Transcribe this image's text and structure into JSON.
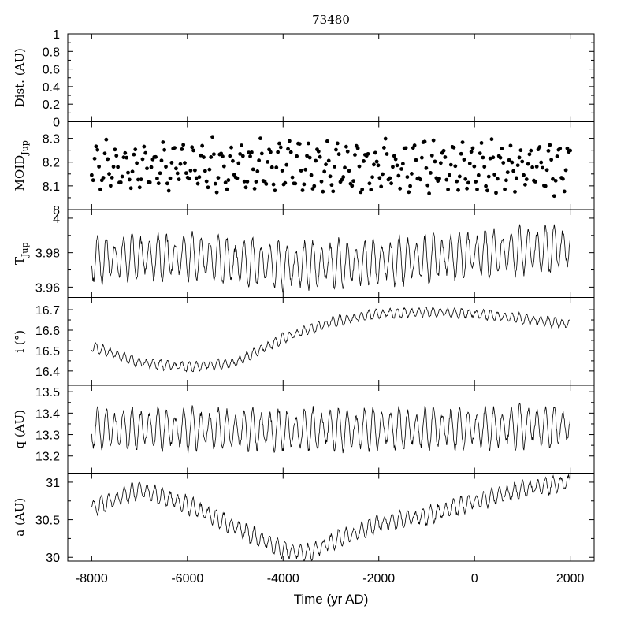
{
  "chart_data": {
    "type": "line",
    "title": "73480",
    "xlabel": "Time (yr AD)",
    "xlim": [
      -8500,
      2500
    ],
    "xticks": [
      -8000,
      -6000,
      -4000,
      -2000,
      0,
      2000
    ],
    "xtick_labels": [
      "-8000",
      "-6000",
      "-4000",
      "-2000",
      "0",
      "2000"
    ],
    "panels": [
      {
        "key": "dist",
        "ylabel": "Dist. (AU)",
        "ylim": [
          0,
          1
        ],
        "yticks": [
          0,
          0.2,
          0.4,
          0.6,
          0.8,
          1
        ],
        "ytick_labels": [
          "0",
          "0.2",
          "0.4",
          "0.6",
          "0.8",
          "1"
        ],
        "series": []
      },
      {
        "key": "moid",
        "ylabel": "MOID",
        "ylabel_sub": "Jup",
        "ylim": [
          8,
          8.37
        ],
        "yticks": [
          8,
          8.1,
          8.2,
          8.3
        ],
        "ytick_labels": [
          "8",
          "8.1",
          "8.2",
          "8.3"
        ],
        "style": "scatter",
        "mean": 8.18,
        "amplitude": 0.1,
        "noise": 0.06,
        "period": 330,
        "trend": 0
      },
      {
        "key": "tjup",
        "ylabel": "T",
        "ylabel_sub": "Jup",
        "ylim": [
          3.954,
          4.005
        ],
        "yticks": [
          3.96,
          3.98,
          4
        ],
        "ytick_labels": [
          "3.96",
          "3.98",
          "4"
        ],
        "style": "line",
        "knots_x": [
          -8000,
          -6000,
          -4000,
          -2000,
          0,
          2000
        ],
        "knots_y": [
          3.976,
          3.978,
          3.972,
          3.974,
          3.979,
          3.983
        ],
        "amplitude": 0.014,
        "noise": 0.004,
        "period": 180
      },
      {
        "key": "incl",
        "ylabel": "i (°)",
        "ylim": [
          16.33,
          16.76
        ],
        "yticks": [
          16.4,
          16.5,
          16.6,
          16.7
        ],
        "ytick_labels": [
          "16.4",
          "16.5",
          "16.6",
          "16.7"
        ],
        "style": "line",
        "knots_x": [
          -8000,
          -7000,
          -6000,
          -5000,
          -4000,
          -3000,
          -2000,
          -1000,
          0,
          2000
        ],
        "knots_y": [
          16.52,
          16.44,
          16.42,
          16.44,
          16.56,
          16.64,
          16.68,
          16.69,
          16.68,
          16.63
        ],
        "amplitude": 0.025,
        "noise": 0.012,
        "period": 150
      },
      {
        "key": "q",
        "ylabel": "q (AU)",
        "ylim": [
          13.12,
          13.53
        ],
        "yticks": [
          13.2,
          13.3,
          13.4,
          13.5
        ],
        "ytick_labels": [
          "13.2",
          "13.3",
          "13.4",
          "13.5"
        ],
        "style": "line",
        "knots_x": [
          -8000,
          -4000,
          0,
          2000
        ],
        "knots_y": [
          13.33,
          13.32,
          13.33,
          13.34
        ],
        "amplitude": 0.1,
        "noise": 0.03,
        "period": 180
      },
      {
        "key": "a",
        "ylabel": "a (AU)",
        "ylim": [
          29.95,
          31.12
        ],
        "yticks": [
          30,
          30.5,
          31
        ],
        "ytick_labels": [
          "30",
          "30.5",
          "31"
        ],
        "style": "line",
        "knots_x": [
          -8000,
          -7000,
          -6000,
          -5000,
          -4000,
          -3500,
          -3000,
          -2000,
          -1000,
          0,
          1000,
          2000
        ],
        "knots_y": [
          30.65,
          30.9,
          30.7,
          30.4,
          30.1,
          30.05,
          30.2,
          30.45,
          30.55,
          30.75,
          30.9,
          31.0
        ],
        "amplitude": 0.12,
        "noise": 0.05,
        "period": 160
      }
    ]
  }
}
